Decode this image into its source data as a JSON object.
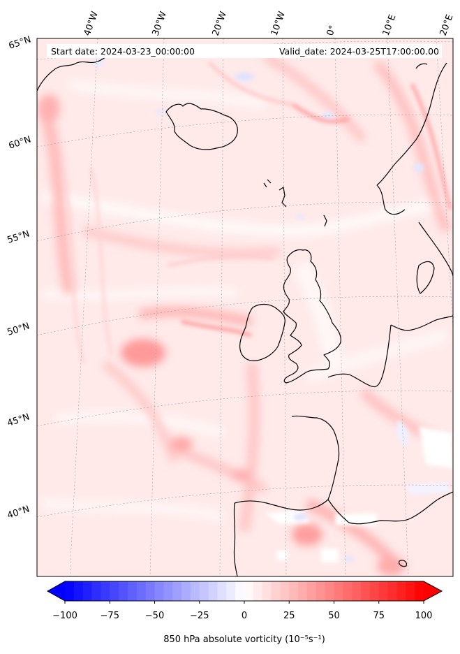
{
  "header": {
    "start_date": "Start date: 2024-03-23_00:00:00",
    "valid_date": "Valid_date: 2024-03-25T17:00:00.00"
  },
  "longitude_labels": [
    "40°W",
    "30°W",
    "20°W",
    "10°W",
    "0°",
    "10°E",
    "20°E"
  ],
  "latitude_labels": [
    "65°N",
    "60°N",
    "55°N",
    "50°N",
    "45°N",
    "40°N"
  ],
  "colorbar": {
    "ticks": [
      "−100",
      "−75",
      "−50",
      "−25",
      "0",
      "25",
      "50",
      "75",
      "100"
    ],
    "min": -100,
    "max": 100,
    "label": "850 hPa absolute vorticity (10⁻⁵s⁻¹)",
    "colormap": "bwr",
    "low_color": "#0000ff",
    "mid_color": "#ffffff",
    "high_color": "#ff0000",
    "coastline_color": "#000000"
  }
}
